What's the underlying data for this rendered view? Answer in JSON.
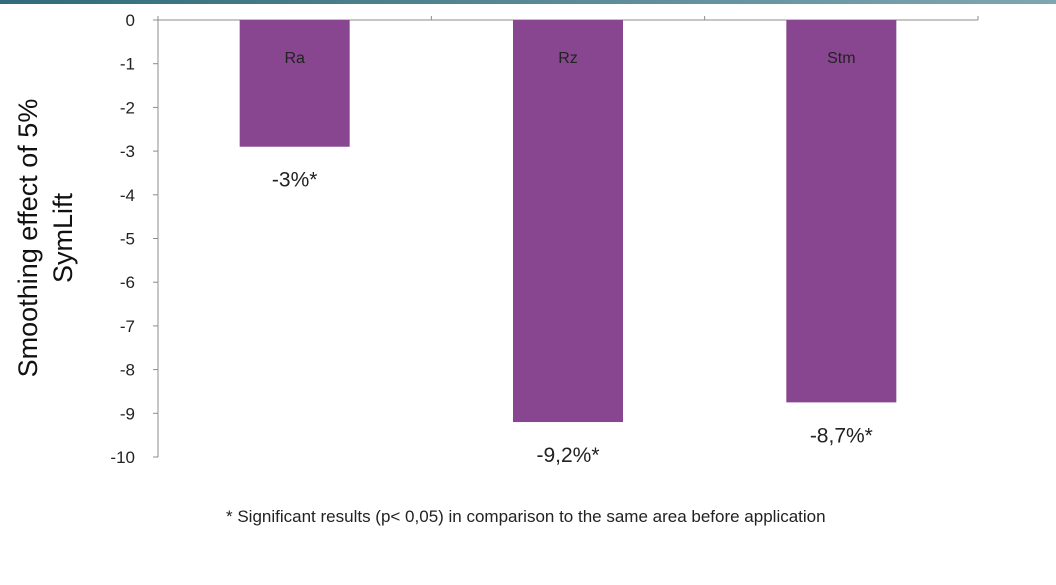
{
  "chart_data": {
    "type": "bar",
    "categories": [
      "Ra",
      "Rz",
      "Stm"
    ],
    "values": [
      -2.9,
      -9.2,
      -8.75
    ],
    "data_labels": [
      "-3%*",
      "-9,2%*",
      "-8,7%*"
    ],
    "title": "",
    "xlabel": "",
    "ylabel_lines": [
      "Smoothing effect  of 5%",
      "SymLift"
    ],
    "ylim": [
      -10,
      0
    ],
    "yticks": [
      0,
      -1,
      -2,
      -3,
      -4,
      -5,
      -6,
      -7,
      -8,
      -9,
      -10
    ],
    "grid": false,
    "legend": "none",
    "bar_color": "#87468f",
    "footnote": "* Significant results (p< 0,05) in comparison to  the same area before application"
  }
}
